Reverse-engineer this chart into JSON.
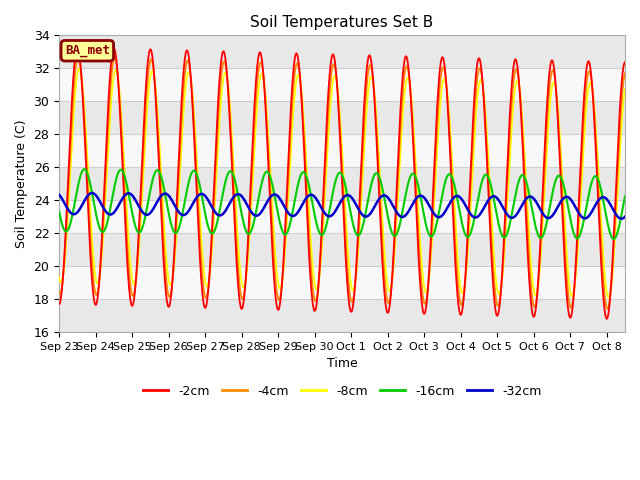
{
  "title": "Soil Temperatures Set B",
  "xlabel": "Time",
  "ylabel": "Soil Temperature (C)",
  "ylim": [
    16,
    34
  ],
  "background_color": "#ffffff",
  "plot_bg_color": "#f0f0f0",
  "grid_color": "#ffffff",
  "legend_label": "BA_met",
  "legend_box_color": "#ffff99",
  "legend_box_edge": "#8B0000",
  "depth_labels": [
    "-2cm",
    "-4cm",
    "-8cm",
    "-16cm",
    "-32cm"
  ],
  "depth_colors": [
    "#ff0000",
    "#ff8800",
    "#ffff00",
    "#00cc00",
    "#0000cc"
  ],
  "tick_labels": [
    "Sep 23",
    "Sep 24",
    "Sep 25",
    "Sep 26",
    "Sep 27",
    "Sep 28",
    "Sep 29",
    "Sep 30",
    "Oct 1",
    "Oct 2",
    "Oct 3",
    "Oct 4",
    "Oct 5",
    "Oct 6",
    "Oct 7",
    "Oct 8"
  ],
  "n_days": 15.5,
  "points_per_day": 96,
  "mean_temp": 25.5,
  "amp_2cm": 7.8,
  "amp_4cm": 7.2,
  "amp_8cm": 6.5,
  "amp_16cm": 1.9,
  "amp_32cm": 0.65,
  "phase_lag_4cm": 0.04,
  "phase_lag_8cm": 0.1,
  "phase_lag_16cm": 0.38,
  "phase_lag_32cm": 0.8,
  "mean_drift": -0.06,
  "mean_32cm": 23.8,
  "mean_16cm": 24.0,
  "yticks": [
    16,
    18,
    20,
    22,
    24,
    26,
    28,
    30,
    32,
    34
  ]
}
